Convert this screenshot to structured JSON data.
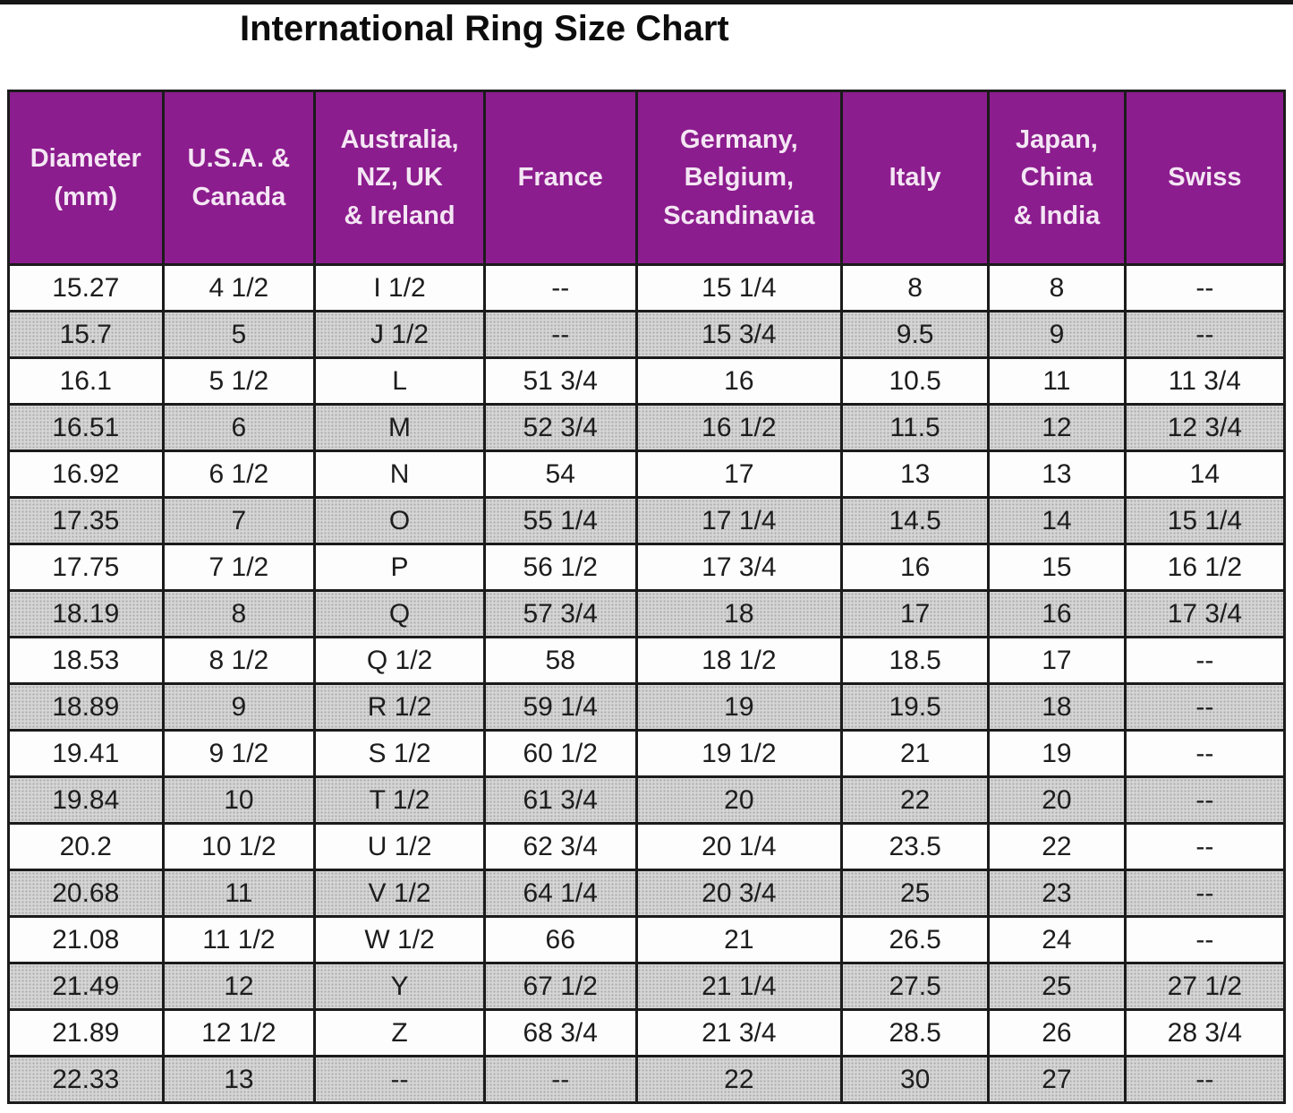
{
  "page": {
    "title": "International Ring Size Chart"
  },
  "colors": {
    "header_bg": "#8C1D8E",
    "header_text": "#F4E6F4",
    "alt_row_bg": "#D6D6D6",
    "border": "#1B1B1B",
    "cell_text": "#1D1D1D"
  },
  "table": {
    "columns": [
      {
        "label": "Diameter\n(mm)"
      },
      {
        "label": "U.S.A. &\nCanada"
      },
      {
        "label": "Australia,\nNZ, UK\n& Ireland"
      },
      {
        "label": "France"
      },
      {
        "label": "Germany,\nBelgium,\nScandinavia"
      },
      {
        "label": "Italy"
      },
      {
        "label": "Japan,\nChina\n& India"
      },
      {
        "label": "Swiss"
      }
    ]
  },
  "chart_data": {
    "type": "table",
    "title": "International Ring Size Chart",
    "columns": [
      "Diameter (mm)",
      "U.S.A. & Canada",
      "Australia, NZ, UK & Ireland",
      "France",
      "Germany, Belgium, Scandinavia",
      "Italy",
      "Japan, China & India",
      "Swiss"
    ],
    "rows": [
      [
        "15.27",
        "4 1/2",
        "I 1/2",
        "--",
        "15 1/4",
        "8",
        "8",
        "--"
      ],
      [
        "15.7",
        "5",
        "J 1/2",
        "--",
        "15 3/4",
        "9.5",
        "9",
        "--"
      ],
      [
        "16.1",
        "5 1/2",
        "L",
        "51 3/4",
        "16",
        "10.5",
        "11",
        "11 3/4"
      ],
      [
        "16.51",
        "6",
        "M",
        "52 3/4",
        "16 1/2",
        "11.5",
        "12",
        "12 3/4"
      ],
      [
        "16.92",
        "6 1/2",
        "N",
        "54",
        "17",
        "13",
        "13",
        "14"
      ],
      [
        "17.35",
        "7",
        "O",
        "55 1/4",
        "17 1/4",
        "14.5",
        "14",
        "15 1/4"
      ],
      [
        "17.75",
        "7 1/2",
        "P",
        "56 1/2",
        "17 3/4",
        "16",
        "15",
        "16 1/2"
      ],
      [
        "18.19",
        "8",
        "Q",
        "57 3/4",
        "18",
        "17",
        "16",
        "17 3/4"
      ],
      [
        "18.53",
        "8 1/2",
        "Q 1/2",
        "58",
        "18 1/2",
        "18.5",
        "17",
        "--"
      ],
      [
        "18.89",
        "9",
        "R 1/2",
        "59 1/4",
        "19",
        "19.5",
        "18",
        "--"
      ],
      [
        "19.41",
        "9 1/2",
        "S 1/2",
        "60 1/2",
        "19 1/2",
        "21",
        "19",
        "--"
      ],
      [
        "19.84",
        "10",
        "T 1/2",
        "61 3/4",
        "20",
        "22",
        "20",
        "--"
      ],
      [
        "20.2",
        "10 1/2",
        "U 1/2",
        "62 3/4",
        "20 1/4",
        "23.5",
        "22",
        "--"
      ],
      [
        "20.68",
        "11",
        "V 1/2",
        "64 1/4",
        "20 3/4",
        "25",
        "23",
        "--"
      ],
      [
        "21.08",
        "11 1/2",
        "W 1/2",
        "66",
        "21",
        "26.5",
        "24",
        "--"
      ],
      [
        "21.49",
        "12",
        "Y",
        "67 1/2",
        "21 1/4",
        "27.5",
        "25",
        "27 1/2"
      ],
      [
        "21.89",
        "12 1/2",
        "Z",
        "68 3/4",
        "21 3/4",
        "28.5",
        "26",
        "28 3/4"
      ],
      [
        "22.33",
        "13",
        "--",
        "--",
        "22",
        "30",
        "27",
        "--"
      ]
    ]
  }
}
